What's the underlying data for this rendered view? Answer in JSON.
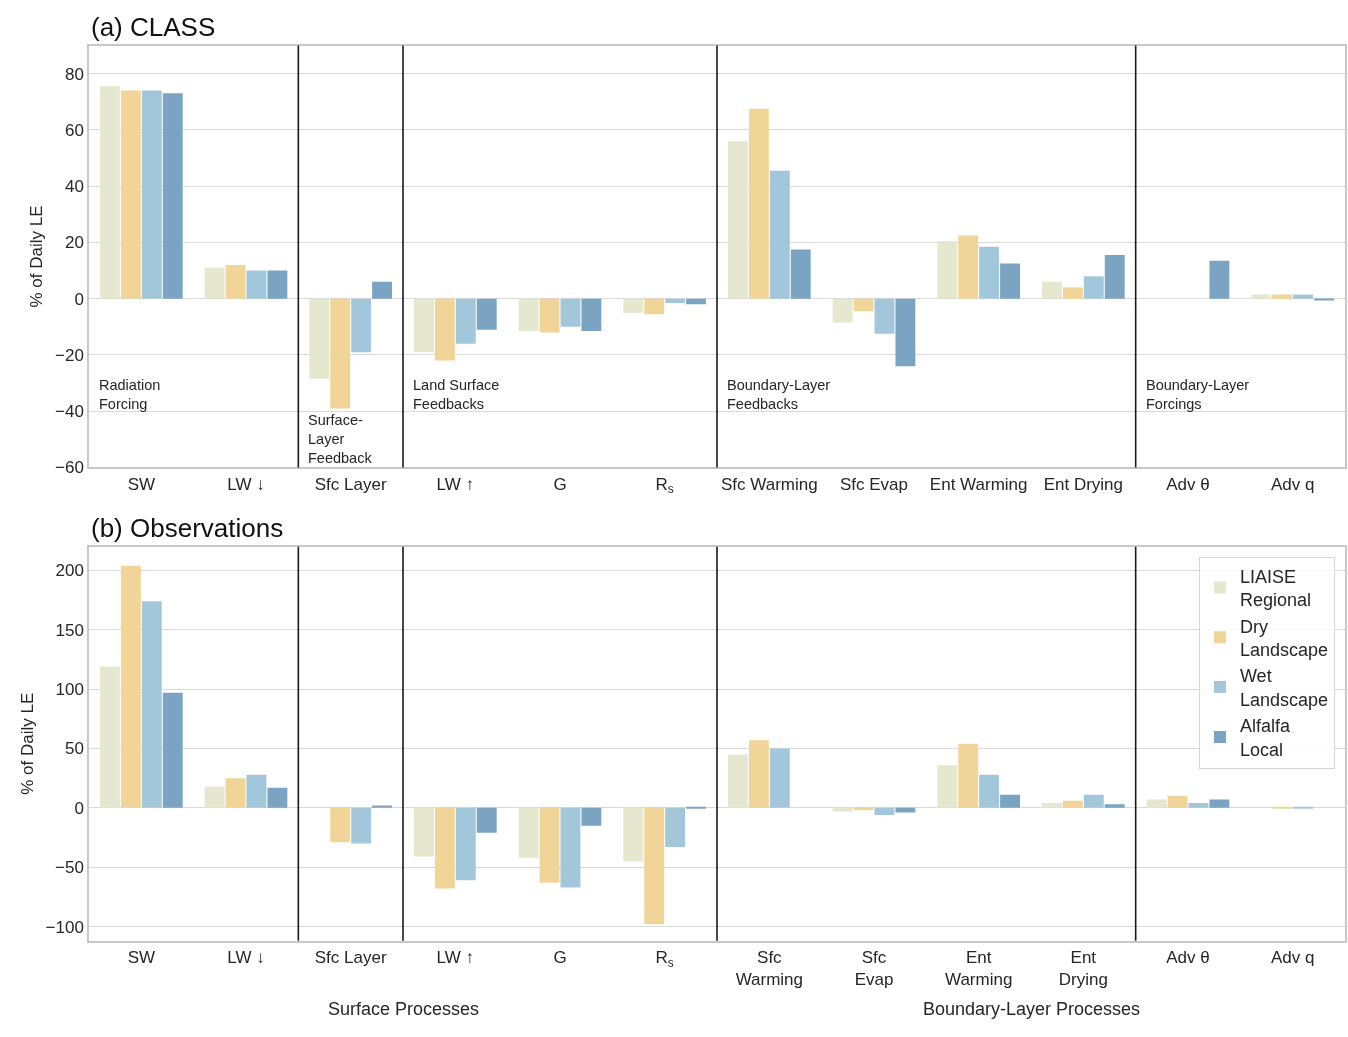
{
  "chart_data": [
    {
      "type": "bar",
      "title": "(a) CLASS",
      "ylabel": "% of Daily LE",
      "categories": [
        "SW",
        "LW ↓",
        "Sfc Layer",
        "LW ↑",
        "G",
        "R$_{s}$",
        "Sfc Warming",
        "Sfc Evap",
        "Ent Warming",
        "Ent Drying",
        "Adv θ",
        "Adv q"
      ],
      "series": [
        {
          "color": "#e5e7cf",
          "values": [
            75.5,
            11,
            -28.5,
            -19,
            -11.5,
            -5,
            56,
            -8.5,
            20.5,
            6,
            0,
            1.5
          ]
        },
        {
          "color": "#f1d497",
          "values": [
            74,
            12,
            -39,
            -22,
            -12,
            -5.5,
            67.5,
            -4.5,
            22.5,
            4,
            0,
            1.5
          ]
        },
        {
          "color": "#a3c7da",
          "values": [
            74,
            10,
            -19,
            -16,
            -10,
            -1.5,
            45.5,
            -12.5,
            18.5,
            8,
            0,
            1.5
          ]
        },
        {
          "color": "#7ba4c3",
          "values": [
            73,
            10,
            6,
            -11,
            -11.5,
            -2,
            17.5,
            -24,
            12.5,
            15.5,
            13.5,
            -0.5
          ]
        }
      ],
      "ylim": [
        -60,
        90
      ],
      "yticks": [
        -60,
        -40,
        -20,
        0,
        20,
        40,
        60,
        80
      ],
      "grid": "y",
      "legend": false,
      "annotations": [
        "Radiation\nForcing",
        "Surface-\nLayer\nFeedback",
        "Land Surface\nFeedbacks",
        "Boundary-Layer\nFeedbacks",
        "Boundary-Layer\nForcings"
      ]
    },
    {
      "type": "bar",
      "title": "(b) Observations",
      "ylabel": "% of Daily LE",
      "categories": [
        "SW",
        "LW ↓",
        "Sfc Layer",
        "LW ↑",
        "G",
        "R$_{s}$",
        "Sfc\nWarming",
        "Sfc\nEvap",
        "Ent\nWarming",
        "Ent\nDrying",
        "Adv θ",
        "Adv q"
      ],
      "series": [
        {
          "name": "LIAISE\nRegional",
          "color": "#e5e7cf",
          "values": [
            119,
            18,
            0,
            -41,
            -42,
            -45,
            45,
            -3,
            36,
            4,
            7,
            0
          ]
        },
        {
          "name": "Dry\nLandscape",
          "color": "#f1d497",
          "values": [
            204,
            25,
            -29,
            -68,
            -63,
            -98,
            57,
            -2,
            54,
            6,
            10,
            1
          ]
        },
        {
          "name": "Wet\nLandscape",
          "color": "#a3c7da",
          "values": [
            174,
            28,
            -30,
            -61,
            -67,
            -33,
            50,
            -6,
            28,
            11,
            4,
            1
          ]
        },
        {
          "name": "Alfalfa\nLocal",
          "color": "#7ba4c3",
          "values": [
            97,
            17,
            2,
            -21,
            -15,
            1,
            0,
            -4,
            11,
            3,
            7,
            0
          ]
        }
      ],
      "ylim": [
        -112,
        220
      ],
      "yticks": [
        -100,
        -50,
        0,
        50,
        100,
        150,
        200
      ],
      "grid": "y",
      "legend": "top right",
      "annotations": [
        "Surface Processes",
        "Boundary-Layer Processes"
      ]
    }
  ]
}
